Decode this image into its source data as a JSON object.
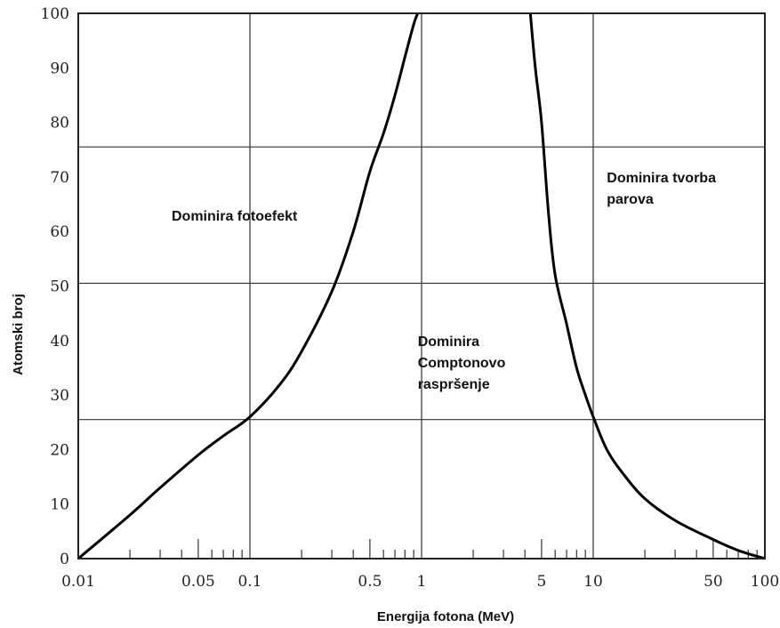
{
  "chart_data": {
    "type": "line",
    "xlabel": "Energija fotona (MeV)",
    "ylabel": "Atomski broj",
    "xscale": "log",
    "xlim": [
      0.01,
      100
    ],
    "ylim": [
      0,
      100
    ],
    "x_ticks": [
      0.01,
      0.05,
      0.1,
      0.5,
      1,
      5,
      10,
      50,
      100
    ],
    "x_tick_labels": [
      "0.01",
      "0.05",
      "0.1",
      "0.5",
      "1",
      "5",
      "10",
      "50",
      "100"
    ],
    "y_ticks": [
      0,
      10,
      20,
      30,
      40,
      50,
      60,
      70,
      80,
      90,
      100
    ],
    "y_tick_labels": [
      "0",
      "10",
      "20",
      "30",
      "40",
      "50",
      "60",
      "70",
      "80",
      "90",
      "100"
    ],
    "grid": {
      "vertical_at_x": [
        0.1,
        1,
        10
      ],
      "horizontal_at_y": [
        25.5,
        50.5,
        75.5
      ]
    },
    "series": [
      {
        "x": [
          0.01,
          0.02,
          0.03,
          0.05,
          0.07,
          0.1,
          0.15,
          0.2,
          0.3,
          0.4,
          0.5,
          0.6,
          0.7,
          0.8,
          0.9,
          0.95
        ],
        "y": [
          0,
          8,
          13,
          19,
          22.5,
          26,
          32,
          38,
          49,
          60,
          71,
          78,
          85,
          92,
          98,
          100
        ]
      },
      {
        "x": [
          4.3,
          4.6,
          5,
          5.5,
          6,
          7,
          8,
          9,
          10,
          12,
          15,
          20,
          30,
          50,
          70,
          100
        ],
        "y": [
          100,
          90,
          80,
          63,
          52,
          43,
          35,
          30,
          26,
          20,
          15.5,
          11,
          7,
          3.5,
          1.5,
          0
        ]
      }
    ],
    "annotations": [
      {
        "text": "Dominira fotoefekt",
        "x": 0.035,
        "y": 62
      },
      {
        "text": [
          "Dominira",
          "Comptonovo",
          "raspršenje"
        ],
        "x": 0.95,
        "y": 39
      },
      {
        "text": [
          "Dominira tvorba",
          "parova"
        ],
        "x": 12,
        "y": 69
      }
    ]
  }
}
